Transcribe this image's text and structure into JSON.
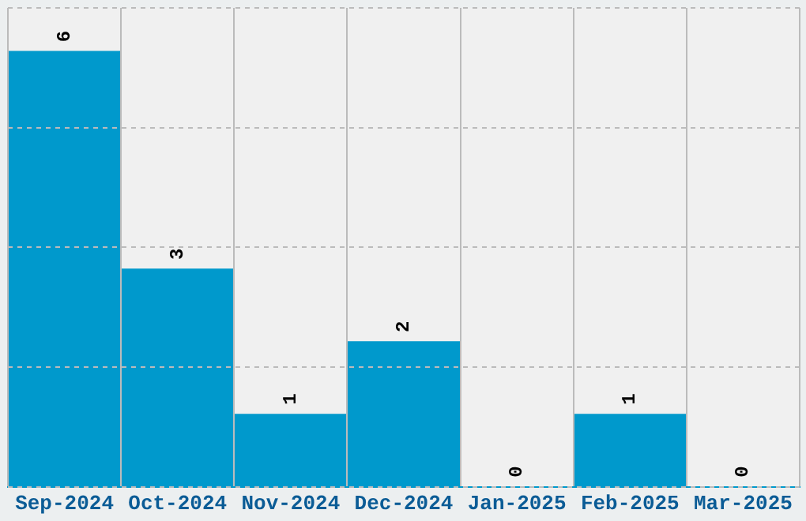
{
  "chart_data": {
    "type": "bar",
    "categories": [
      "Sep-2024",
      "Oct-2024",
      "Nov-2024",
      "Dec-2024",
      "Jan-2025",
      "Feb-2025",
      "Mar-2025"
    ],
    "values": [
      6,
      3,
      1,
      2,
      0,
      1,
      0
    ],
    "color": "#0099cc",
    "ylim": [
      0,
      6.6
    ],
    "yticks": [
      {
        "value": 0,
        "label": null
      },
      {
        "value": 1.65,
        "label": null
      },
      {
        "value": 3.3,
        "label": null
      },
      {
        "value": 4.95,
        "label": null
      },
      {
        "value": 6.6,
        "label": null
      }
    ],
    "tick_labels": "x",
    "grid": true,
    "data_labels": true
  }
}
